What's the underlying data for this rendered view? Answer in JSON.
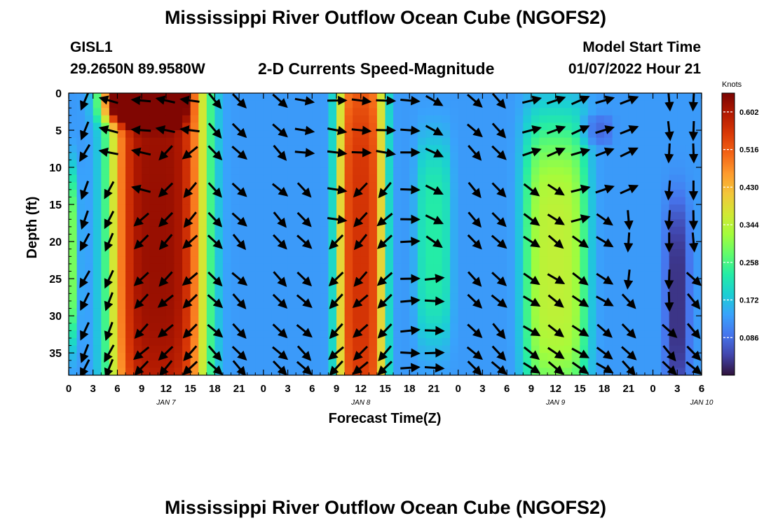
{
  "header": {
    "title": "Mississippi River Outflow Ocean Cube (NGOFS2)",
    "station": "GISL1",
    "coords": "29.2650N  89.9580W",
    "subtitle": "2-D Currents Speed-Magnitude",
    "model_label": "Model Start Time",
    "model_time": "01/07/2022 Hour 21",
    "second_title": "Mississippi River Outflow Ocean Cube (NGOFS2)"
  },
  "chart_data": {
    "type": "heatmap",
    "title": "2-D Currents Speed-Magnitude",
    "xlabel": "Forecast Time(Z)",
    "ylabel": "Depth (ft)",
    "x_range_hours": [
      0,
      78
    ],
    "x_ticks": [
      "0",
      "3",
      "6",
      "9",
      "12",
      "15",
      "18",
      "21",
      "0",
      "3",
      "6",
      "9",
      "12",
      "15",
      "18",
      "21",
      "0",
      "3",
      "6",
      "9",
      "12",
      "15",
      "18",
      "21",
      "0",
      "3",
      "6"
    ],
    "date_labels": [
      {
        "label": "JAN 7",
        "hour": 12
      },
      {
        "label": "JAN 8",
        "hour": 36
      },
      {
        "label": "JAN 9",
        "hour": 60
      },
      {
        "label": "JAN 10",
        "hour": 78
      }
    ],
    "y_range": [
      0,
      38
    ],
    "y_ticks": [
      0,
      5,
      10,
      15,
      20,
      25,
      30,
      35
    ],
    "colorbar": {
      "label": "Knots",
      "range": [
        0,
        0.645
      ],
      "ticks": [
        "0.602",
        "0.516",
        "0.430",
        "0.344",
        "0.258",
        "0.172",
        "0.086"
      ],
      "tick_values": [
        0.602,
        0.516,
        0.43,
        0.344,
        0.258,
        0.172,
        0.086
      ]
    },
    "speed_features": [
      {
        "t": 11,
        "d": 18,
        "st": 6,
        "sd": 40,
        "amp": 0.49
      },
      {
        "t": 9,
        "d": 0,
        "st": 5,
        "sd": 4,
        "amp": 0.4
      },
      {
        "t": 36,
        "d": 22,
        "st": 3,
        "sd": 38,
        "amp": 0.43
      },
      {
        "t": 0.5,
        "d": 22,
        "st": 0.8,
        "sd": 12,
        "amp": 0.16
      },
      {
        "t": 45,
        "d": 20,
        "st": 2.2,
        "sd": 14,
        "amp": 0.1
      },
      {
        "t": 60,
        "d": 23,
        "st": 4,
        "sd": 20,
        "amp": 0.22
      },
      {
        "t": 75,
        "d": 28,
        "st": 1.5,
        "sd": 14,
        "amp": -0.1
      },
      {
        "t": 65,
        "d": 5,
        "st": 2,
        "sd": 2,
        "amp": -0.05
      }
    ],
    "vector_rows": [
      1,
      5,
      8,
      13,
      17,
      20,
      25,
      28,
      32,
      35,
      37
    ],
    "vector_cols": [
      2,
      5,
      9,
      12,
      15,
      18,
      21,
      26,
      29,
      33,
      36,
      39,
      42,
      45,
      50,
      53,
      57,
      60,
      63,
      66,
      69,
      74,
      77
    ],
    "vector_directions": [
      {
        "t": 1,
        "d": 22,
        "deg": 115
      },
      {
        "t": 11,
        "d": 20,
        "deg": 135
      },
      {
        "t": 9,
        "d": 2,
        "deg": 190
      },
      {
        "t": 22,
        "d": 20,
        "deg": 45
      },
      {
        "t": 26,
        "d": 22,
        "deg": 45
      },
      {
        "t": 36,
        "d": 22,
        "deg": 135
      },
      {
        "t": 34,
        "d": 4,
        "deg": 5
      },
      {
        "t": 43,
        "d": 25,
        "deg": 0
      },
      {
        "t": 47,
        "d": 20,
        "deg": 30
      },
      {
        "t": 52,
        "d": 22,
        "deg": 45
      },
      {
        "t": 60,
        "d": 22,
        "deg": 35
      },
      {
        "t": 62,
        "d": 4,
        "deg": 340
      },
      {
        "t": 76,
        "d": 22,
        "deg": 90
      },
      {
        "t": 77,
        "d": 30,
        "deg": 45
      }
    ]
  },
  "colors": {
    "colormap": [
      "#30123b",
      "#4145ab",
      "#4675ed",
      "#39a2fc",
      "#1bcfd4",
      "#24eca6",
      "#61fc6c",
      "#a4fc3b",
      "#d1e834",
      "#f3c63a",
      "#fe9b2d",
      "#f36315",
      "#d93806",
      "#b11901",
      "#7a0402"
    ],
    "arrow": "#000000",
    "colorbar_tick": "#ffffff"
  }
}
